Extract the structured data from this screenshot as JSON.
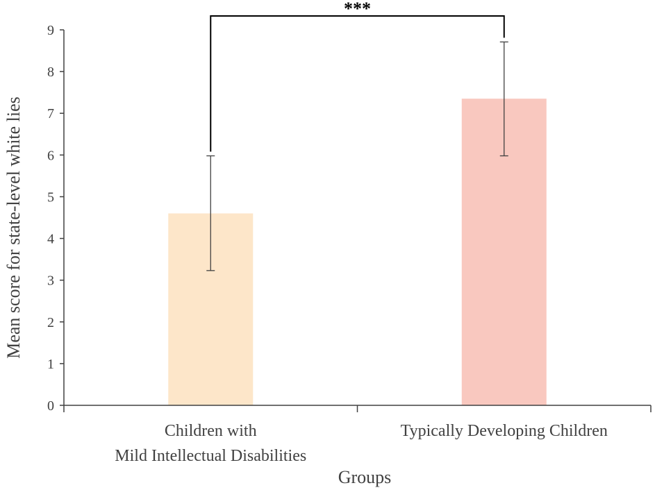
{
  "chart_data": {
    "type": "bar",
    "title": "",
    "xlabel": "Groups",
    "ylabel": "Mean score for  state-level white lies",
    "categories": [
      [
        "Children with",
        "Mild Intellectual Disabilities"
      ],
      [
        "Typically Developing Children"
      ]
    ],
    "values": [
      4.6,
      7.35
    ],
    "error_low": [
      3.23,
      5.98
    ],
    "error_high": [
      5.98,
      8.71
    ],
    "bar_colors": [
      "#fde6c9",
      "#f9c8bf"
    ],
    "ylim": [
      0,
      9
    ],
    "yticks": [
      0,
      1,
      2,
      3,
      4,
      5,
      6,
      7,
      8,
      9
    ],
    "grid": false,
    "significance": {
      "from_category": 0,
      "to_category": 1,
      "label": "***"
    }
  }
}
